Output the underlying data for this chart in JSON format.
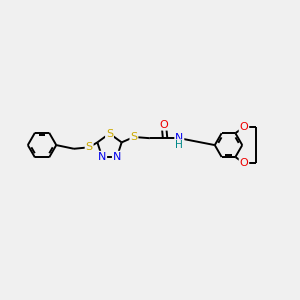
{
  "bg_color": "#f0f0f0",
  "atom_colors": {
    "S": "#ccaa00",
    "N": "#0000ee",
    "O": "#ee0000",
    "NH": "#008888",
    "C": "#000000"
  },
  "bond_color": "#000000",
  "bond_width": 1.4,
  "font_size_atom": 7.5,
  "figsize": [
    3.0,
    3.0
  ],
  "dpi": 100,
  "xlim": [
    0,
    12
  ],
  "ylim": [
    0,
    10
  ]
}
